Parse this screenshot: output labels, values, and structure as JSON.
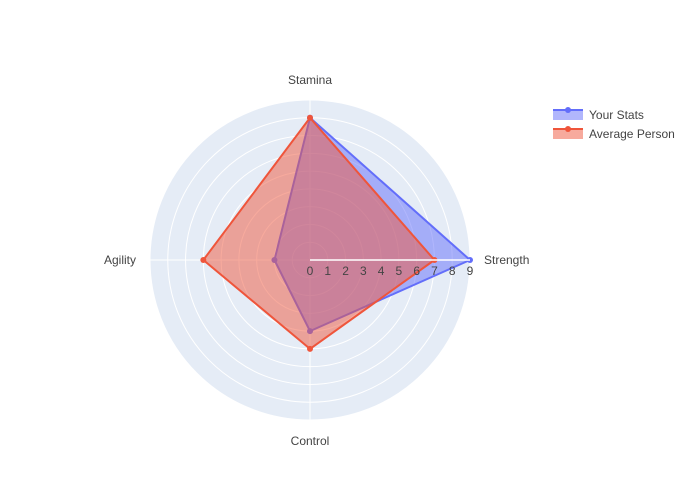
{
  "chart_data": {
    "type": "radar",
    "title": "",
    "axes": [
      "Strength",
      "Stamina",
      "Agility",
      "Control"
    ],
    "radial_range": [
      0,
      9
    ],
    "radial_ticks": [
      0,
      1,
      2,
      3,
      4,
      5,
      6,
      7,
      8,
      9
    ],
    "grid": true,
    "legend_position": "top-right",
    "series": [
      {
        "name": "Your Stats",
        "values": [
          9,
          8,
          2,
          4
        ],
        "color": "#636efa"
      },
      {
        "name": "Average Person",
        "values": [
          7,
          8,
          6,
          5
        ],
        "color": "#ef553b"
      }
    ]
  }
}
